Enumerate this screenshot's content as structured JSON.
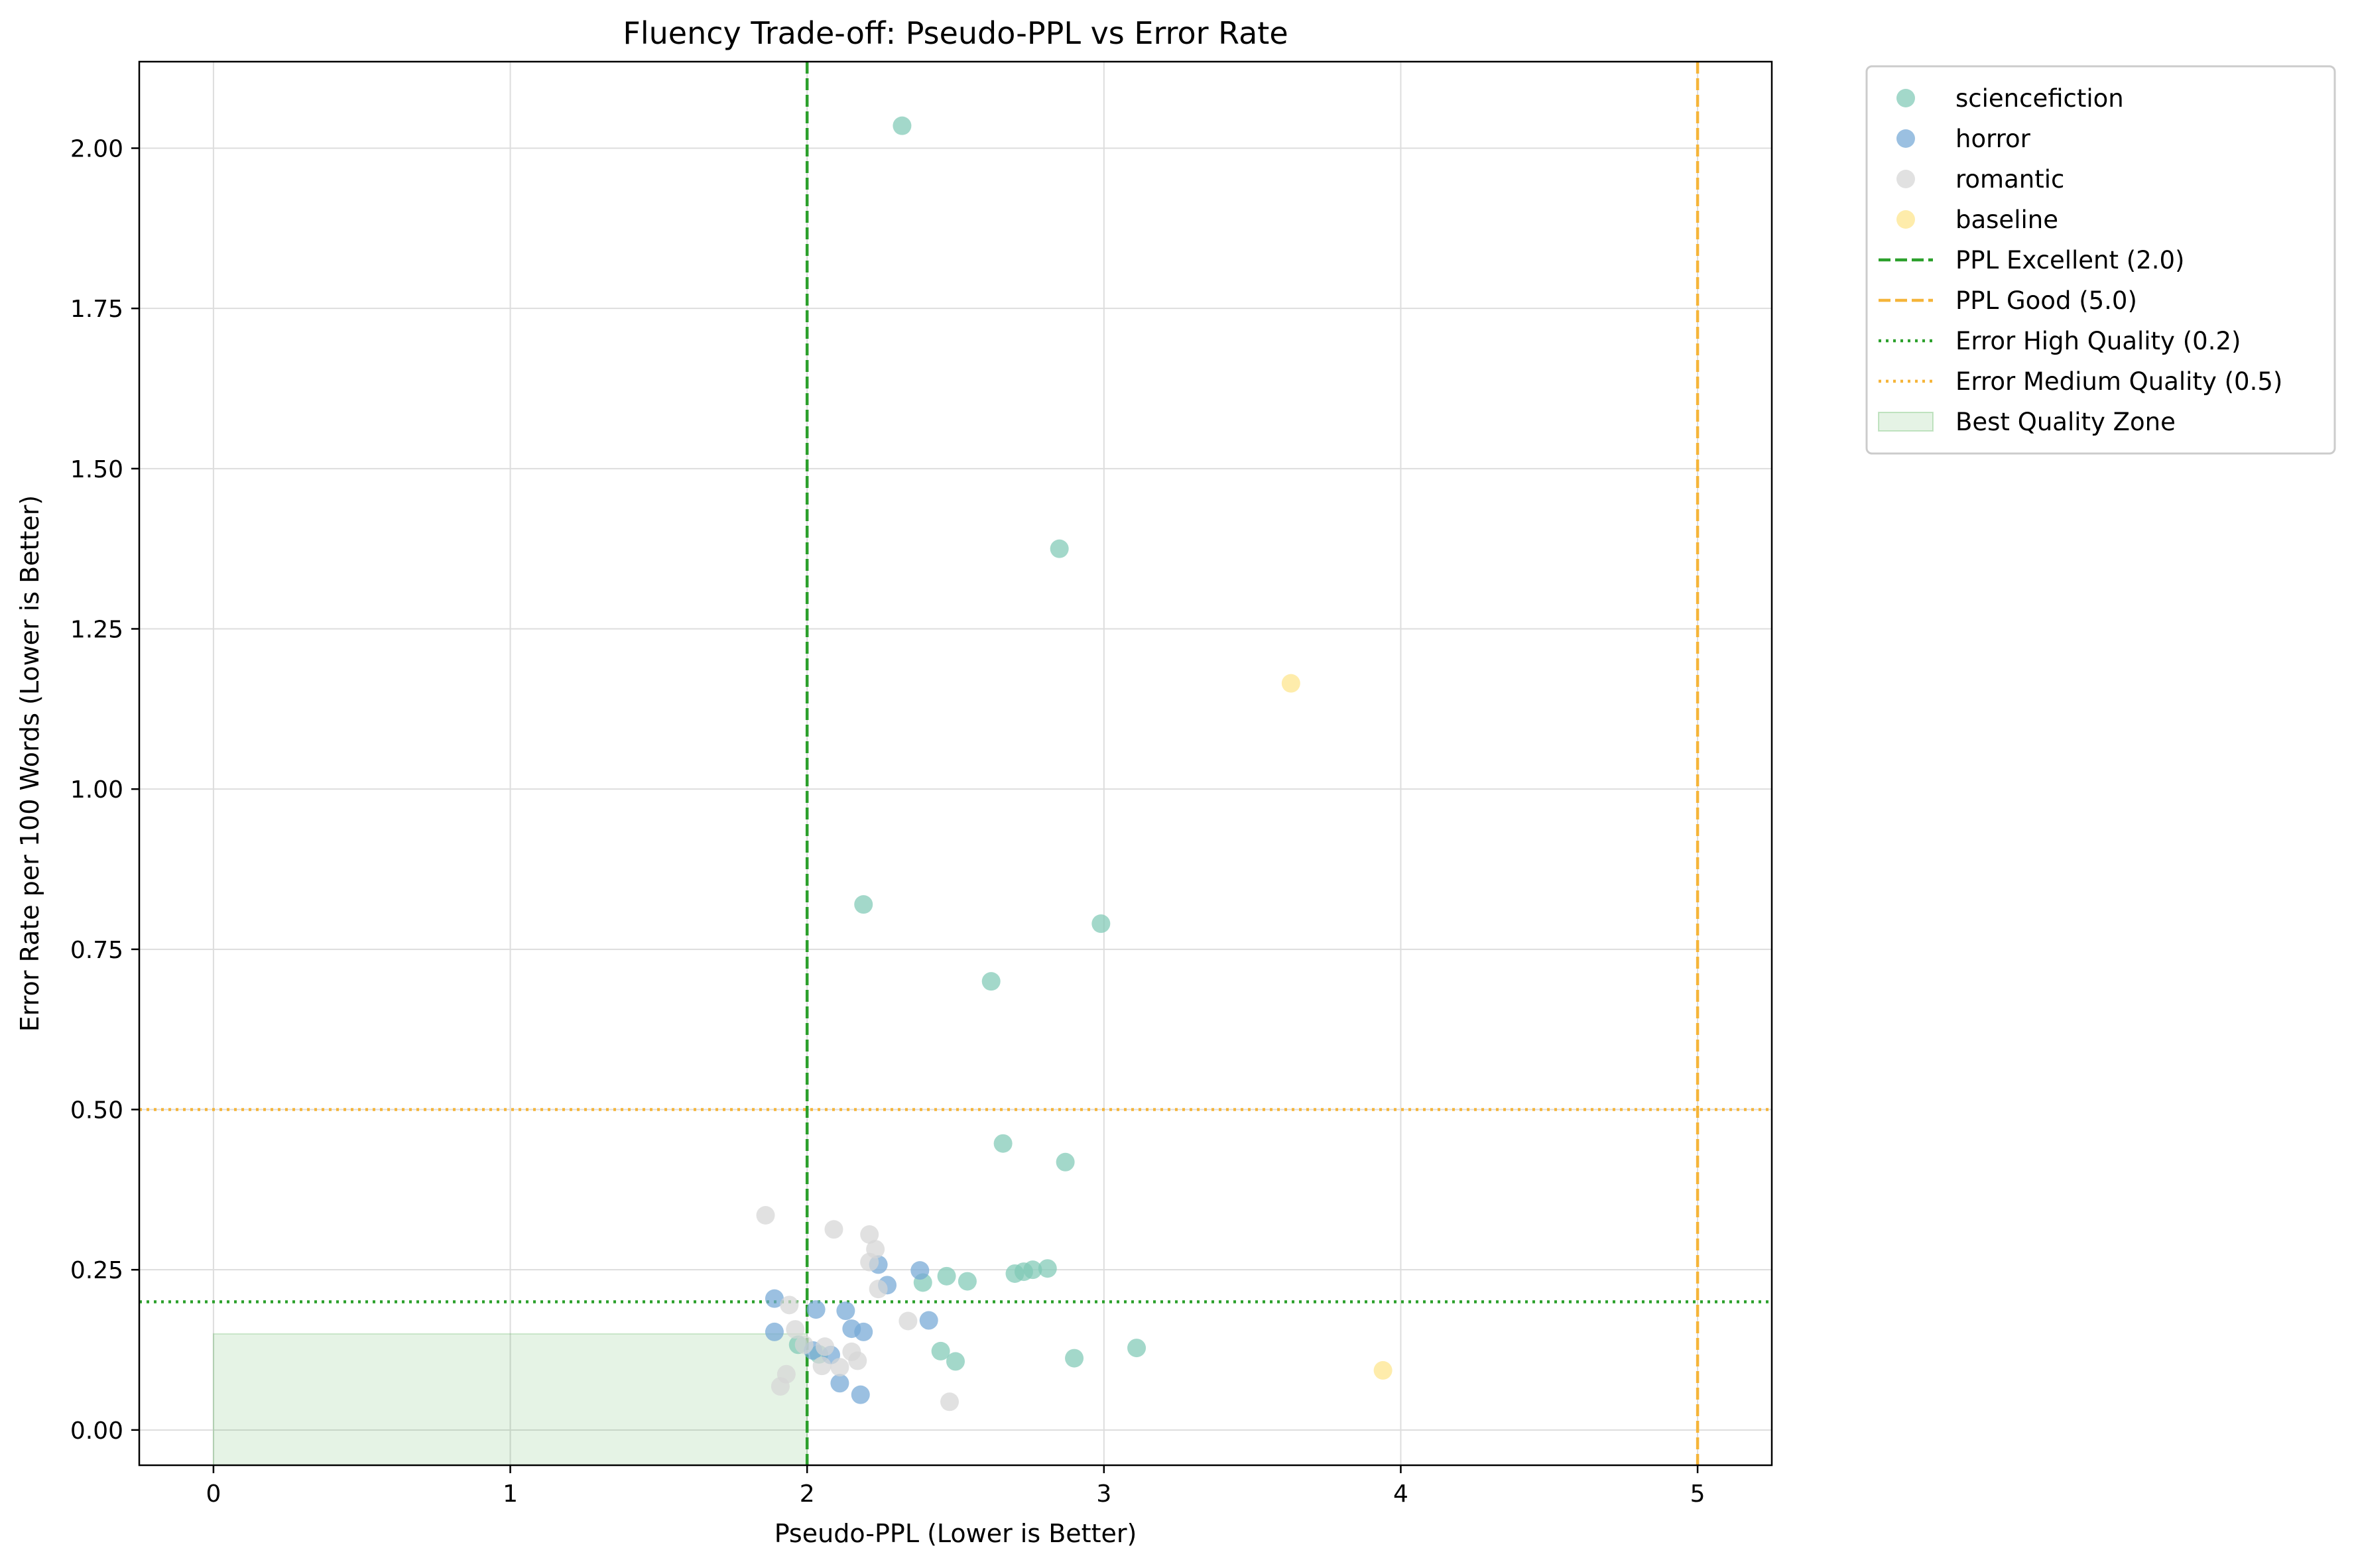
{
  "chart_data": {
    "type": "scatter",
    "title": "Fluency Trade-off: Pseudo-PPL vs Error Rate",
    "xlabel": "Pseudo-PPL (Lower is Better)",
    "ylabel": "Error Rate per 100 Words (Lower is Better)",
    "xlim": [
      -0.25,
      5.25
    ],
    "ylim": [
      -0.055,
      2.135
    ],
    "x_ticks": [
      0,
      1,
      2,
      3,
      4,
      5
    ],
    "x_tick_labels": [
      "0",
      "1",
      "2",
      "3",
      "4",
      "5"
    ],
    "y_ticks": [
      0.0,
      0.25,
      0.5,
      0.75,
      1.0,
      1.25,
      1.5,
      1.75,
      2.0
    ],
    "y_tick_labels": [
      "0.00",
      "0.25",
      "0.50",
      "0.75",
      "1.00",
      "1.25",
      "1.50",
      "1.75",
      "2.00"
    ],
    "grid": true,
    "legend_position": "outside-top-right",
    "series": [
      {
        "name": "sciencefiction",
        "color": "#7fc9b5",
        "points": [
          {
            "x": 2.32,
            "y": 2.035
          },
          {
            "x": 2.85,
            "y": 1.375
          },
          {
            "x": 2.19,
            "y": 0.82
          },
          {
            "x": 2.99,
            "y": 0.79
          },
          {
            "x": 2.62,
            "y": 0.7
          },
          {
            "x": 2.66,
            "y": 0.447
          },
          {
            "x": 2.87,
            "y": 0.418
          },
          {
            "x": 2.81,
            "y": 0.252
          },
          {
            "x": 2.76,
            "y": 0.25
          },
          {
            "x": 2.73,
            "y": 0.247
          },
          {
            "x": 2.7,
            "y": 0.244
          },
          {
            "x": 2.47,
            "y": 0.24
          },
          {
            "x": 2.54,
            "y": 0.232
          },
          {
            "x": 2.39,
            "y": 0.23
          },
          {
            "x": 3.11,
            "y": 0.128
          },
          {
            "x": 2.45,
            "y": 0.123
          },
          {
            "x": 2.9,
            "y": 0.112
          },
          {
            "x": 2.5,
            "y": 0.107
          },
          {
            "x": 1.97,
            "y": 0.133
          },
          {
            "x": 2.04,
            "y": 0.118
          }
        ]
      },
      {
        "name": "horror",
        "color": "#75a8d5",
        "points": [
          {
            "x": 1.89,
            "y": 0.205
          },
          {
            "x": 1.89,
            "y": 0.153
          },
          {
            "x": 2.03,
            "y": 0.188
          },
          {
            "x": 2.13,
            "y": 0.186
          },
          {
            "x": 2.38,
            "y": 0.249
          },
          {
            "x": 2.24,
            "y": 0.258
          },
          {
            "x": 2.27,
            "y": 0.226
          },
          {
            "x": 2.41,
            "y": 0.171
          },
          {
            "x": 2.15,
            "y": 0.158
          },
          {
            "x": 2.19,
            "y": 0.153
          },
          {
            "x": 2.02,
            "y": 0.124
          },
          {
            "x": 2.08,
            "y": 0.117
          },
          {
            "x": 2.11,
            "y": 0.073
          },
          {
            "x": 2.18,
            "y": 0.055
          }
        ]
      },
      {
        "name": "romantic",
        "color": "#d6d6d6",
        "points": [
          {
            "x": 1.86,
            "y": 0.335
          },
          {
            "x": 2.09,
            "y": 0.313
          },
          {
            "x": 2.21,
            "y": 0.305
          },
          {
            "x": 2.23,
            "y": 0.282
          },
          {
            "x": 2.21,
            "y": 0.262
          },
          {
            "x": 2.24,
            "y": 0.22
          },
          {
            "x": 1.94,
            "y": 0.195
          },
          {
            "x": 2.34,
            "y": 0.17
          },
          {
            "x": 1.96,
            "y": 0.157
          },
          {
            "x": 1.99,
            "y": 0.133
          },
          {
            "x": 2.06,
            "y": 0.13
          },
          {
            "x": 2.15,
            "y": 0.122
          },
          {
            "x": 2.17,
            "y": 0.108
          },
          {
            "x": 2.05,
            "y": 0.1
          },
          {
            "x": 2.11,
            "y": 0.098
          },
          {
            "x": 1.93,
            "y": 0.087
          },
          {
            "x": 1.91,
            "y": 0.068
          },
          {
            "x": 2.48,
            "y": 0.044
          }
        ]
      },
      {
        "name": "baseline",
        "color": "#fde58a",
        "points": [
          {
            "x": 3.63,
            "y": 1.165
          },
          {
            "x": 3.94,
            "y": 0.093
          }
        ]
      }
    ],
    "reference_lines": [
      {
        "name": "PPL Excellent (2.0)",
        "orientation": "vertical",
        "value": 2.0,
        "style": "dashed",
        "color": "#2ca02c"
      },
      {
        "name": "PPL Good (5.0)",
        "orientation": "vertical",
        "value": 5.0,
        "style": "dashed",
        "color": "#f5b53a"
      },
      {
        "name": "Error High Quality (0.2)",
        "orientation": "horizontal",
        "value": 0.2,
        "style": "dotted",
        "color": "#2ca02c"
      },
      {
        "name": "Error Medium Quality (0.5)",
        "orientation": "horizontal",
        "value": 0.5,
        "style": "dotted",
        "color": "#f5b53a"
      }
    ],
    "region": {
      "name": "Best Quality Zone",
      "x": [
        0,
        2.0
      ],
      "y": [
        -0.055,
        0.15
      ],
      "color": "#2ca02c",
      "opacity": 0.12
    }
  }
}
